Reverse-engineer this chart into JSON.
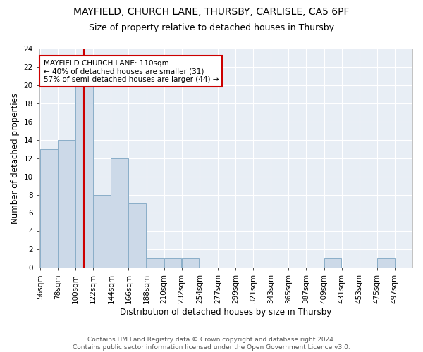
{
  "title1": "MAYFIELD, CHURCH LANE, THURSBY, CARLISLE, CA5 6PF",
  "title2": "Size of property relative to detached houses in Thursby",
  "xlabel": "Distribution of detached houses by size in Thursby",
  "ylabel": "Number of detached properties",
  "bins": [
    56,
    78,
    100,
    122,
    144,
    166,
    188,
    210,
    232,
    254,
    277,
    299,
    321,
    343,
    365,
    387,
    409,
    431,
    453,
    475,
    497
  ],
  "bin_labels": [
    "56sqm",
    "78sqm",
    "100sqm",
    "122sqm",
    "144sqm",
    "166sqm",
    "188sqm",
    "210sqm",
    "232sqm",
    "254sqm",
    "277sqm",
    "299sqm",
    "321sqm",
    "343sqm",
    "365sqm",
    "387sqm",
    "409sqm",
    "431sqm",
    "453sqm",
    "475sqm",
    "497sqm"
  ],
  "counts": [
    13,
    14,
    20,
    8,
    12,
    7,
    1,
    1,
    1,
    0,
    0,
    0,
    0,
    0,
    0,
    0,
    1,
    0,
    0,
    1
  ],
  "bar_color": "#ccd9e8",
  "bar_edge_color": "#8aaec8",
  "vline_x": 110,
  "vline_color": "#cc0000",
  "annotation_text": "MAYFIELD CHURCH LANE: 110sqm\n← 40% of detached houses are smaller (31)\n57% of semi-detached houses are larger (44) →",
  "annotation_box_color": "white",
  "annotation_box_edge_color": "#cc0000",
  "ylim": [
    0,
    24
  ],
  "yticks": [
    0,
    2,
    4,
    6,
    8,
    10,
    12,
    14,
    16,
    18,
    20,
    22,
    24
  ],
  "bg_color": "#e8eef5",
  "footer_text": "Contains HM Land Registry data © Crown copyright and database right 2024.\nContains public sector information licensed under the Open Government Licence v3.0.",
  "title1_fontsize": 10,
  "title2_fontsize": 9,
  "xlabel_fontsize": 8.5,
  "ylabel_fontsize": 8.5,
  "tick_fontsize": 7.5,
  "annot_fontsize": 7.5,
  "footer_fontsize": 6.5
}
